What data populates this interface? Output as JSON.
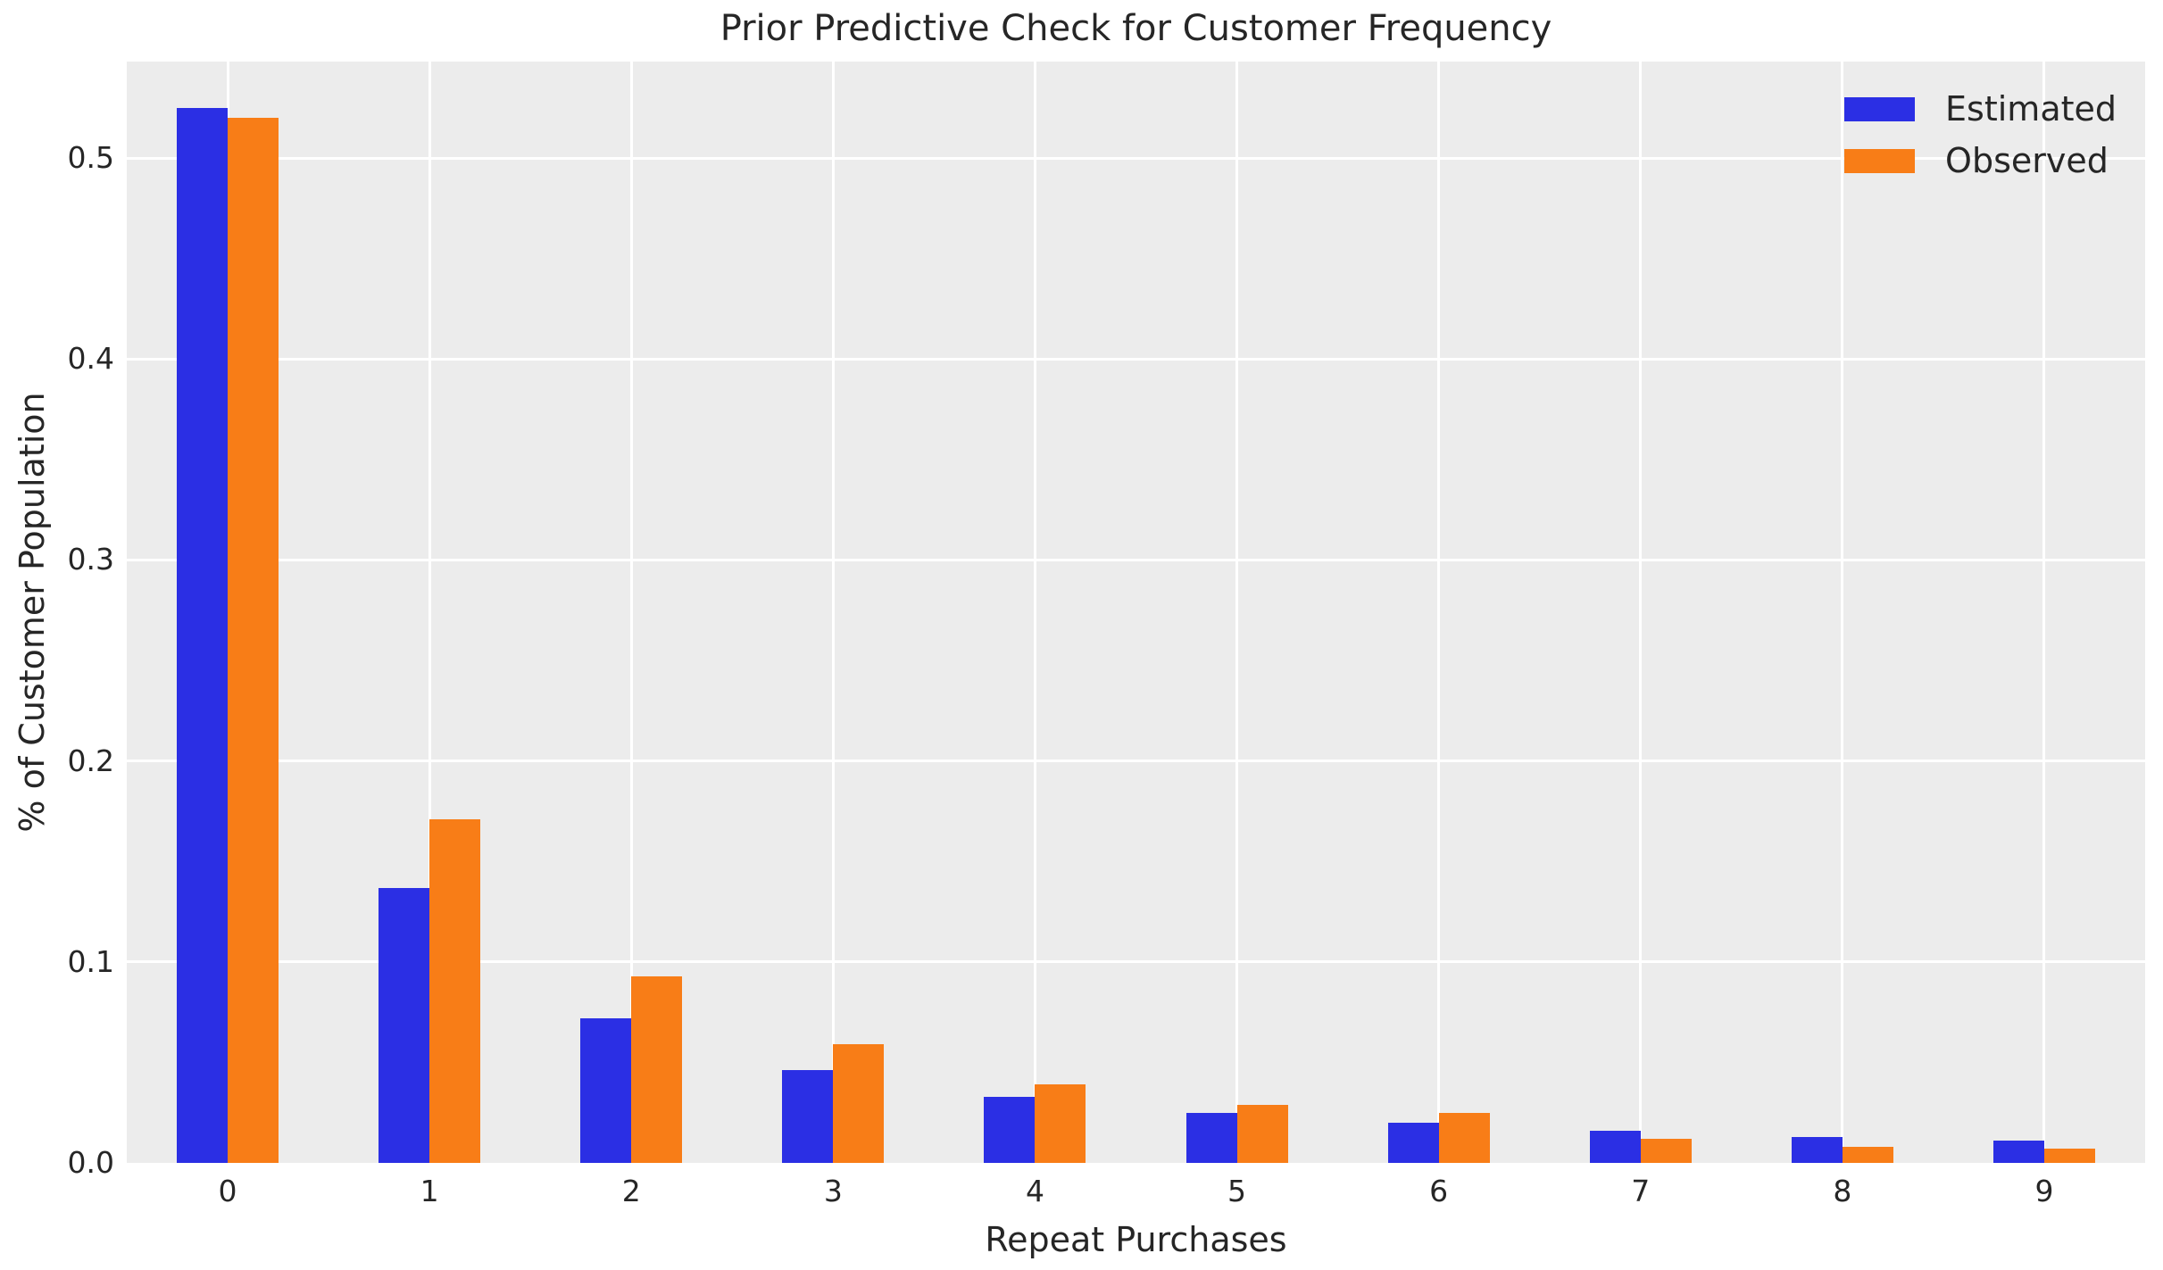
{
  "chart_data": {
    "type": "bar",
    "title": "Prior Predictive Check for Customer Frequency",
    "xlabel": "Repeat Purchases",
    "ylabel": "% of Customer Population",
    "categories": [
      "0",
      "1",
      "2",
      "3",
      "4",
      "5",
      "6",
      "7",
      "8",
      "9"
    ],
    "series": [
      {
        "name": "Estimated",
        "color": "#2b2fe4",
        "values": [
          0.525,
          0.137,
          0.072,
          0.046,
          0.033,
          0.025,
          0.02,
          0.016,
          0.013,
          0.011
        ]
      },
      {
        "name": "Observed",
        "color": "#f87d17",
        "values": [
          0.52,
          0.171,
          0.093,
          0.059,
          0.039,
          0.029,
          0.025,
          0.012,
          0.008,
          0.007
        ]
      }
    ],
    "yticks": [
      0.0,
      0.1,
      0.2,
      0.3,
      0.4,
      0.5
    ],
    "ytick_labels": [
      "0.0",
      "0.1",
      "0.2",
      "0.3",
      "0.4",
      "0.5"
    ],
    "ylim": [
      0,
      0.548
    ],
    "grid": true,
    "legend_position": "upper right"
  },
  "style": {
    "figure_bg": "#ffffff",
    "plot_bg": "#ececec",
    "grid_color": "#ffffff",
    "text_color": "#262626"
  }
}
